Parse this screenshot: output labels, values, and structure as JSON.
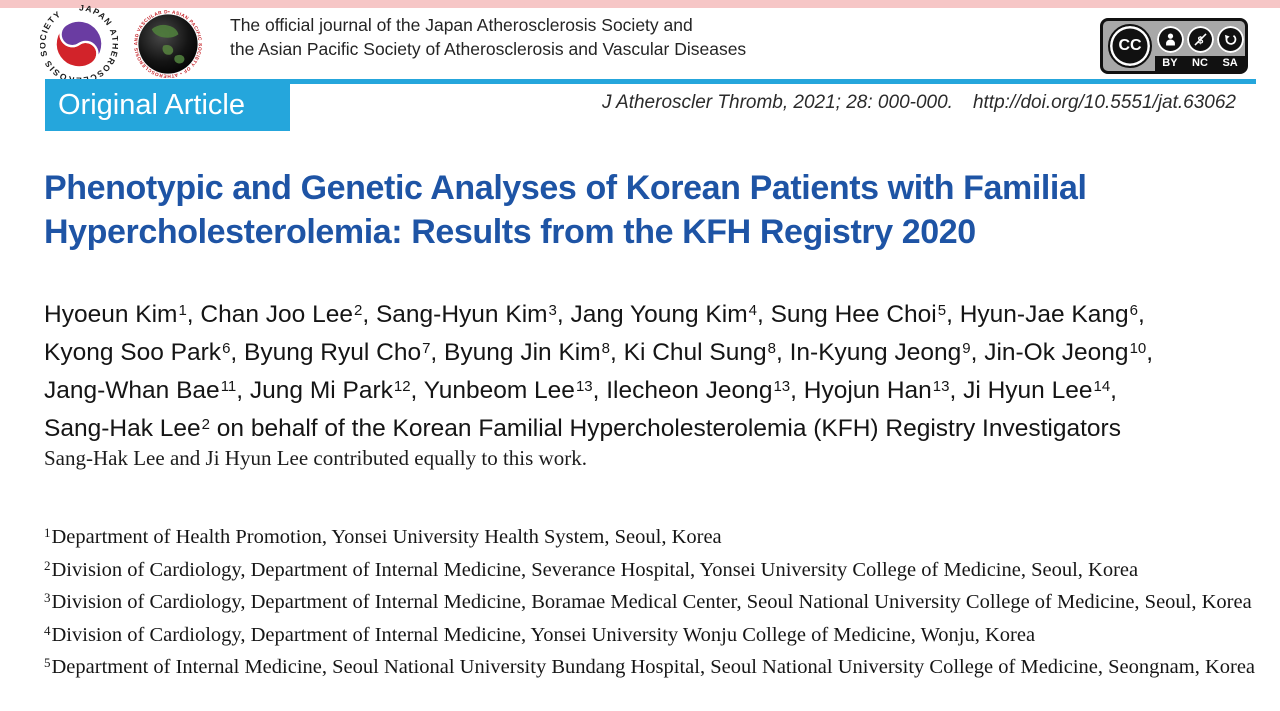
{
  "page": {
    "header": {
      "journal_note_line1": "The official journal of the Japan Atherosclerosis Society and",
      "journal_note_line2": "the Asian Pacific Society of Atherosclerosis and Vascular Diseases",
      "jas_logo_ring_text": "JAPAN ATHEROSCLEROSIS SOCIETY",
      "apsavd_logo_ring_text": "• ASIAN PACIFIC SOCIETY OF • ATHEROSCLEROSIS AND VASCULAR DISEASES",
      "cc_badge": {
        "cc_text": "CC",
        "labels": [
          "BY",
          "NC",
          "SA"
        ]
      }
    },
    "article_type": "Original Article",
    "citation": "J Atheroscler Thromb, 2021; 28: 000-000.",
    "doi": "http://doi.org/10.5551/jat.63062",
    "title_lines": [
      "Phenotypic and Genetic Analyses of Korean Patients with Familial",
      "Hypercholesterolemia: Results from the KFH Registry 2020"
    ],
    "author_lines": [
      {
        "authors": [
          {
            "name": "Hyoeun Kim",
            "sup": "1"
          },
          {
            "name": "Chan Joo Lee",
            "sup": "2"
          },
          {
            "name": "Sang-Hyun Kim",
            "sup": "3"
          },
          {
            "name": "Jang Young Kim",
            "sup": "4"
          },
          {
            "name": "Sung Hee Choi",
            "sup": "5"
          },
          {
            "name": "Hyun-Jae Kang",
            "sup": "6"
          }
        ],
        "end": ","
      },
      {
        "authors": [
          {
            "name": "Kyong Soo Park",
            "sup": "6"
          },
          {
            "name": "Byung Ryul Cho",
            "sup": "7"
          },
          {
            "name": "Byung Jin Kim",
            "sup": "8"
          },
          {
            "name": "Ki Chul Sung",
            "sup": "8"
          },
          {
            "name": "In-Kyung Jeong",
            "sup": "9"
          },
          {
            "name": "Jin-Ok Jeong",
            "sup": "10"
          }
        ],
        "end": ","
      },
      {
        "authors": [
          {
            "name": "Jang-Whan Bae",
            "sup": "11"
          },
          {
            "name": "Jung Mi Park",
            "sup": "12"
          },
          {
            "name": "Yunbeom Lee",
            "sup": "13"
          },
          {
            "name": "Ilecheon Jeong",
            "sup": "13"
          },
          {
            "name": "Hyojun Han",
            "sup": "13"
          },
          {
            "name": "Ji Hyun Lee",
            "sup": "14"
          }
        ],
        "end": ","
      },
      {
        "authors": [
          {
            "name": "Sang-Hak Lee",
            "sup": "2"
          }
        ],
        "end": "",
        "suffix": " on behalf of the Korean Familial Hypercholesterolemia (KFH) Registry Investigators"
      }
    ],
    "equal_contribution": "Sang-Hak Lee and Ji Hyun Lee contributed equally to this work.",
    "affiliations": [
      {
        "num": "1",
        "text": "Department of Health Promotion, Yonsei University Health System, Seoul, Korea"
      },
      {
        "num": "2",
        "text": "Division of Cardiology, Department of Internal Medicine, Severance Hospital, Yonsei University College of Medicine, Seoul, Korea"
      },
      {
        "num": "3",
        "text": "Division of Cardiology, Department of Internal Medicine, Boramae Medical Center, Seoul National University College of Medicine, Seoul, Korea"
      },
      {
        "num": "4",
        "text": "Division of Cardiology, Department of Internal Medicine, Yonsei University Wonju College of Medicine, Wonju, Korea"
      },
      {
        "num": "5",
        "text": "Department of Internal Medicine, Seoul National University Bundang Hospital, Seoul National University College of Medicine, Seongnam, Korea"
      }
    ],
    "colors": {
      "accent_blue": "#25a6dc",
      "title_blue": "#1e54a5",
      "top_strip_pink": "#f6c6c6",
      "logo_red": "#d2232a",
      "logo_purple": "#6a3ca2",
      "logo_ring_red": "#c42127",
      "cc_gray": "#a8a8a8"
    }
  }
}
